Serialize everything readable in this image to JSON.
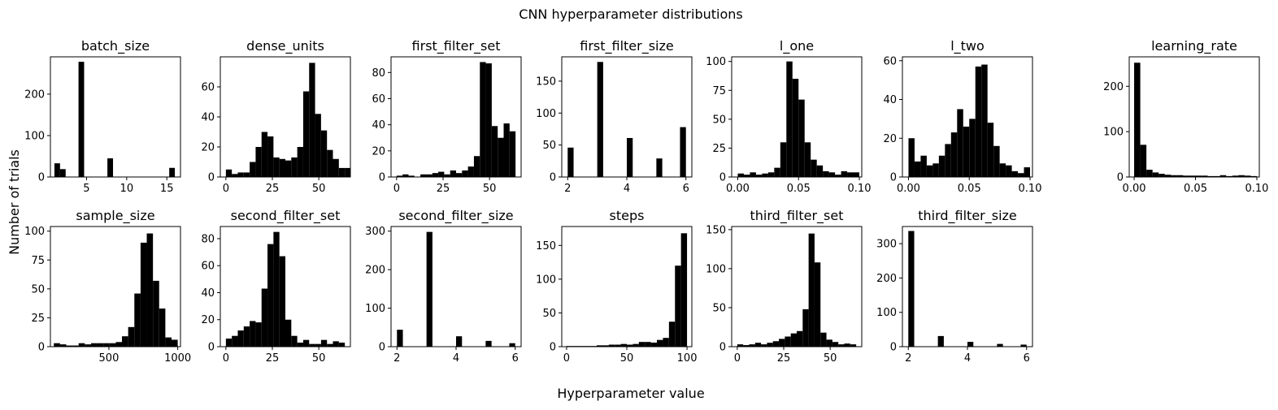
{
  "figure": {
    "suptitle": "CNN hyperparameter distributions",
    "xlabel": "Hyperparameter value",
    "ylabel": "Number of trials"
  },
  "chart_data": [
    {
      "type": "bar",
      "title": "batch_size",
      "xlim": [
        0.5,
        16.7
      ],
      "ylim": [
        0,
        290
      ],
      "xticks": [
        5,
        10,
        15
      ],
      "xtick_labels": [
        "5",
        "10",
        "15"
      ],
      "yticks": [
        0,
        100,
        200
      ],
      "ytick_labels": [
        "0",
        "100",
        "200"
      ],
      "bins": [
        [
          1,
          1.7,
          33
        ],
        [
          1.7,
          2.4,
          19
        ],
        [
          4,
          4.7,
          278
        ],
        [
          7.6,
          8.3,
          45
        ],
        [
          15.3,
          16,
          22
        ]
      ]
    },
    {
      "type": "bar",
      "title": "dense_units",
      "xlim": [
        -3,
        67
      ],
      "ylim": [
        0,
        80
      ],
      "xticks": [
        0,
        25,
        50
      ],
      "xtick_labels": [
        "0",
        "25",
        "50"
      ],
      "yticks": [
        0,
        20,
        40,
        60
      ],
      "ytick_labels": [
        "0",
        "20",
        "40",
        "60"
      ],
      "bins": [
        [
          0,
          3.2,
          5
        ],
        [
          3.2,
          6.4,
          2
        ],
        [
          6.4,
          9.6,
          3
        ],
        [
          9.6,
          12.8,
          3
        ],
        [
          12.8,
          16,
          10
        ],
        [
          16,
          19.2,
          20
        ],
        [
          19.2,
          22.4,
          30
        ],
        [
          22.4,
          25.6,
          27
        ],
        [
          25.6,
          28.8,
          13
        ],
        [
          28.8,
          32,
          12
        ],
        [
          32,
          35.2,
          11
        ],
        [
          35.2,
          38.4,
          13
        ],
        [
          38.4,
          41.6,
          20
        ],
        [
          41.6,
          44.8,
          57
        ],
        [
          44.8,
          48,
          76
        ],
        [
          48,
          51.2,
          42
        ],
        [
          51.2,
          54.4,
          31
        ],
        [
          54.4,
          57.6,
          18
        ],
        [
          57.6,
          60.8,
          12
        ],
        [
          60.8,
          64,
          6
        ],
        [
          64,
          67.2,
          6
        ]
      ]
    },
    {
      "type": "bar",
      "title": "first_filter_set",
      "xlim": [
        -3,
        67
      ],
      "ylim": [
        0,
        92
      ],
      "xticks": [
        0,
        25,
        50
      ],
      "xtick_labels": [
        "0",
        "25",
        "50"
      ],
      "yticks": [
        0,
        20,
        40,
        60,
        80
      ],
      "ytick_labels": [
        "0",
        "20",
        "40",
        "60",
        "80"
      ],
      "bins": [
        [
          0,
          3.2,
          1
        ],
        [
          3.2,
          6.4,
          2
        ],
        [
          6.4,
          9.6,
          1
        ],
        [
          9.6,
          12.8,
          0
        ],
        [
          12.8,
          16,
          2
        ],
        [
          16,
          19.2,
          2
        ],
        [
          19.2,
          22.4,
          3
        ],
        [
          22.4,
          25.6,
          4
        ],
        [
          25.6,
          28.8,
          2
        ],
        [
          28.8,
          32,
          5
        ],
        [
          32,
          35.2,
          3
        ],
        [
          35.2,
          38.4,
          5
        ],
        [
          38.4,
          41.6,
          8
        ],
        [
          41.6,
          44.8,
          16
        ],
        [
          44.8,
          48,
          88
        ],
        [
          48,
          51.2,
          87
        ],
        [
          51.2,
          54.4,
          39
        ],
        [
          54.4,
          57.6,
          30
        ],
        [
          57.6,
          60.8,
          41
        ],
        [
          60.8,
          64,
          35
        ]
      ]
    },
    {
      "type": "bar",
      "title": "first_filter_size",
      "xlim": [
        1.8,
        6.2
      ],
      "ylim": [
        0,
        188
      ],
      "xticks": [
        2,
        4,
        6
      ],
      "xtick_labels": [
        "2",
        "4",
        "6"
      ],
      "yticks": [
        0,
        50,
        100,
        150
      ],
      "ytick_labels": [
        "0",
        "50",
        "100",
        "150"
      ],
      "bins": [
        [
          2,
          2.2,
          46
        ],
        [
          3,
          3.2,
          180
        ],
        [
          4,
          4.2,
          61
        ],
        [
          5,
          5.2,
          29
        ],
        [
          5.8,
          6,
          78
        ]
      ]
    },
    {
      "type": "bar",
      "title": "l_one",
      "xlim": [
        -0.005,
        0.102
      ],
      "ylim": [
        0,
        104
      ],
      "xticks": [
        0,
        0.05,
        0.1
      ],
      "xtick_labels": [
        "0.00",
        "0.05",
        "0.10"
      ],
      "yticks": [
        0,
        25,
        50,
        75,
        100
      ],
      "ytick_labels": [
        "0",
        "25",
        "50",
        "75",
        "100"
      ],
      "bins": [
        [
          0,
          0.005,
          3
        ],
        [
          0.005,
          0.01,
          2
        ],
        [
          0.01,
          0.015,
          4
        ],
        [
          0.015,
          0.02,
          2
        ],
        [
          0.02,
          0.025,
          3
        ],
        [
          0.025,
          0.03,
          4
        ],
        [
          0.03,
          0.035,
          8
        ],
        [
          0.035,
          0.04,
          30
        ],
        [
          0.04,
          0.045,
          100
        ],
        [
          0.045,
          0.05,
          85
        ],
        [
          0.05,
          0.055,
          67
        ],
        [
          0.055,
          0.06,
          30
        ],
        [
          0.06,
          0.065,
          15
        ],
        [
          0.065,
          0.07,
          10
        ],
        [
          0.07,
          0.075,
          5
        ],
        [
          0.075,
          0.08,
          4
        ],
        [
          0.08,
          0.085,
          2
        ],
        [
          0.085,
          0.09,
          5
        ],
        [
          0.09,
          0.095,
          4
        ],
        [
          0.095,
          0.1,
          4
        ]
      ]
    },
    {
      "type": "bar",
      "title": "l_two",
      "xlim": [
        -0.005,
        0.102
      ],
      "ylim": [
        0,
        62
      ],
      "xticks": [
        0,
        0.05,
        0.1
      ],
      "xtick_labels": [
        "0.00",
        "0.05",
        "0.10"
      ],
      "yticks": [
        0,
        20,
        40,
        60
      ],
      "ytick_labels": [
        "0",
        "20",
        "40",
        "60"
      ],
      "bins": [
        [
          0,
          0.005,
          20
        ],
        [
          0.005,
          0.01,
          8
        ],
        [
          0.01,
          0.015,
          11
        ],
        [
          0.015,
          0.02,
          6
        ],
        [
          0.02,
          0.025,
          7
        ],
        [
          0.025,
          0.03,
          11
        ],
        [
          0.03,
          0.035,
          17
        ],
        [
          0.035,
          0.04,
          23
        ],
        [
          0.04,
          0.045,
          35
        ],
        [
          0.045,
          0.05,
          26
        ],
        [
          0.05,
          0.055,
          30
        ],
        [
          0.055,
          0.06,
          57
        ],
        [
          0.06,
          0.065,
          58
        ],
        [
          0.065,
          0.07,
          28
        ],
        [
          0.07,
          0.075,
          16
        ],
        [
          0.075,
          0.08,
          7
        ],
        [
          0.08,
          0.085,
          6
        ],
        [
          0.085,
          0.09,
          3
        ],
        [
          0.09,
          0.095,
          2
        ],
        [
          0.095,
          0.1,
          5
        ]
      ]
    },
    {
      "type": "bar",
      "title": "learning_rate",
      "xlim": [
        -0.004,
        0.102
      ],
      "ylim": [
        0,
        265
      ],
      "xticks": [
        0,
        0.05,
        0.1
      ],
      "xtick_labels": [
        "0.00",
        "0.05",
        "0.10"
      ],
      "yticks": [
        0,
        100,
        200
      ],
      "ytick_labels": [
        "0",
        "100",
        "200"
      ],
      "bins": [
        [
          0,
          0.005,
          252
        ],
        [
          0.005,
          0.01,
          71
        ],
        [
          0.01,
          0.015,
          16
        ],
        [
          0.015,
          0.02,
          10
        ],
        [
          0.02,
          0.025,
          7
        ],
        [
          0.025,
          0.03,
          5
        ],
        [
          0.03,
          0.035,
          4
        ],
        [
          0.035,
          0.04,
          4
        ],
        [
          0.04,
          0.045,
          3
        ],
        [
          0.045,
          0.05,
          3
        ],
        [
          0.05,
          0.055,
          3
        ],
        [
          0.055,
          0.06,
          3
        ],
        [
          0.06,
          0.065,
          2
        ],
        [
          0.065,
          0.07,
          2
        ],
        [
          0.07,
          0.075,
          4
        ],
        [
          0.075,
          0.08,
          2
        ],
        [
          0.08,
          0.085,
          3
        ],
        [
          0.085,
          0.09,
          4
        ],
        [
          0.09,
          0.095,
          3
        ],
        [
          0.095,
          0.1,
          2
        ]
      ]
    },
    {
      "type": "bar",
      "title": "sample_size",
      "xlim": [
        75,
        1020
      ],
      "ylim": [
        0,
        104
      ],
      "xticks": [
        500,
        1000
      ],
      "xtick_labels": [
        "500",
        "1000"
      ],
      "yticks": [
        0,
        25,
        50,
        75,
        100
      ],
      "ytick_labels": [
        "0",
        "25",
        "50",
        "75",
        "100"
      ],
      "bins": [
        [
          100,
          145,
          3
        ],
        [
          145,
          190,
          2
        ],
        [
          190,
          235,
          1
        ],
        [
          235,
          280,
          1
        ],
        [
          280,
          325,
          3
        ],
        [
          325,
          370,
          2
        ],
        [
          370,
          415,
          3
        ],
        [
          415,
          460,
          3
        ],
        [
          460,
          505,
          3
        ],
        [
          505,
          550,
          3
        ],
        [
          550,
          595,
          4
        ],
        [
          595,
          640,
          9
        ],
        [
          640,
          685,
          17
        ],
        [
          685,
          730,
          46
        ],
        [
          730,
          775,
          90
        ],
        [
          775,
          820,
          98
        ],
        [
          820,
          865,
          57
        ],
        [
          865,
          910,
          33
        ],
        [
          910,
          955,
          8
        ],
        [
          955,
          1000,
          6
        ]
      ]
    },
    {
      "type": "bar",
      "title": "second_filter_set",
      "xlim": [
        -3,
        67
      ],
      "ylim": [
        0,
        89
      ],
      "xticks": [
        0,
        25,
        50
      ],
      "xtick_labels": [
        "0",
        "25",
        "50"
      ],
      "yticks": [
        0,
        20,
        40,
        60,
        80
      ],
      "ytick_labels": [
        "0",
        "20",
        "40",
        "60",
        "80"
      ],
      "bins": [
        [
          0,
          3.2,
          6
        ],
        [
          3.2,
          6.4,
          8
        ],
        [
          6.4,
          9.6,
          12
        ],
        [
          9.6,
          12.8,
          15
        ],
        [
          12.8,
          16,
          19
        ],
        [
          16,
          19.2,
          18
        ],
        [
          19.2,
          22.4,
          43
        ],
        [
          22.4,
          25.6,
          76
        ],
        [
          25.6,
          28.8,
          85
        ],
        [
          28.8,
          32,
          67
        ],
        [
          32,
          35.2,
          20
        ],
        [
          35.2,
          38.4,
          8
        ],
        [
          38.4,
          41.6,
          3
        ],
        [
          41.6,
          44.8,
          5
        ],
        [
          44.8,
          48,
          2
        ],
        [
          48,
          51.2,
          2
        ],
        [
          51.2,
          54.4,
          5
        ],
        [
          54.4,
          57.6,
          2
        ],
        [
          57.6,
          60.8,
          4
        ],
        [
          60.8,
          64,
          3
        ]
      ]
    },
    {
      "type": "bar",
      "title": "second_filter_size",
      "xlim": [
        1.8,
        6.2
      ],
      "ylim": [
        0,
        312
      ],
      "xticks": [
        2,
        4,
        6
      ],
      "xtick_labels": [
        "2",
        "4",
        "6"
      ],
      "yticks": [
        0,
        100,
        200,
        300
      ],
      "ytick_labels": [
        "0",
        "100",
        "200",
        "300"
      ],
      "bins": [
        [
          2,
          2.2,
          44
        ],
        [
          3,
          3.2,
          298
        ],
        [
          4,
          4.2,
          27
        ],
        [
          5,
          5.2,
          15
        ],
        [
          5.8,
          6,
          9
        ]
      ]
    },
    {
      "type": "bar",
      "title": "steps",
      "xlim": [
        -4,
        104
      ],
      "ylim": [
        0,
        178
      ],
      "xticks": [
        0,
        50,
        100
      ],
      "xtick_labels": [
        "0",
        "50",
        "100"
      ],
      "yticks": [
        0,
        50,
        100,
        150
      ],
      "ytick_labels": [
        "0",
        "50",
        "100",
        "150"
      ],
      "bins": [
        [
          0,
          5,
          1
        ],
        [
          5,
          10,
          1
        ],
        [
          10,
          15,
          1
        ],
        [
          15,
          20,
          1
        ],
        [
          20,
          25,
          1
        ],
        [
          25,
          30,
          2
        ],
        [
          30,
          35,
          2
        ],
        [
          35,
          40,
          3
        ],
        [
          40,
          45,
          3
        ],
        [
          45,
          50,
          4
        ],
        [
          50,
          55,
          3
        ],
        [
          55,
          60,
          4
        ],
        [
          60,
          65,
          7
        ],
        [
          65,
          70,
          7
        ],
        [
          70,
          75,
          6
        ],
        [
          75,
          80,
          10
        ],
        [
          80,
          85,
          13
        ],
        [
          85,
          90,
          37
        ],
        [
          90,
          95,
          120
        ],
        [
          95,
          100,
          168
        ]
      ]
    },
    {
      "type": "bar",
      "title": "third_filter_set",
      "xlim": [
        -3,
        67
      ],
      "ylim": [
        0,
        154
      ],
      "xticks": [
        0,
        25,
        50
      ],
      "xtick_labels": [
        "0",
        "25",
        "50"
      ],
      "yticks": [
        0,
        50,
        100,
        150
      ],
      "ytick_labels": [
        "0",
        "50",
        "100",
        "150"
      ],
      "bins": [
        [
          0,
          3.2,
          3
        ],
        [
          3.2,
          6.4,
          2
        ],
        [
          6.4,
          9.6,
          3
        ],
        [
          9.6,
          12.8,
          5
        ],
        [
          12.8,
          16,
          3
        ],
        [
          16,
          19.2,
          5
        ],
        [
          19.2,
          22.4,
          7
        ],
        [
          22.4,
          25.6,
          10
        ],
        [
          25.6,
          28.8,
          13
        ],
        [
          28.8,
          32,
          17
        ],
        [
          32,
          35.2,
          20
        ],
        [
          35.2,
          38.4,
          48
        ],
        [
          38.4,
          41.6,
          145
        ],
        [
          41.6,
          44.8,
          108
        ],
        [
          44.8,
          48,
          18
        ],
        [
          48,
          51.2,
          9
        ],
        [
          51.2,
          54.4,
          6
        ],
        [
          54.4,
          57.6,
          3
        ],
        [
          57.6,
          60.8,
          4
        ],
        [
          60.8,
          64,
          3
        ]
      ]
    },
    {
      "type": "bar",
      "title": "third_filter_size",
      "xlim": [
        1.8,
        6.2
      ],
      "ylim": [
        0,
        350
      ],
      "xticks": [
        2,
        4,
        6
      ],
      "xtick_labels": [
        "2",
        "4",
        "6"
      ],
      "yticks": [
        0,
        100,
        200,
        300
      ],
      "ytick_labels": [
        "0",
        "100",
        "200",
        "300"
      ],
      "bins": [
        [
          2,
          2.2,
          337
        ],
        [
          3,
          3.2,
          31
        ],
        [
          4,
          4.2,
          14
        ],
        [
          5,
          5.2,
          8
        ],
        [
          5.8,
          6,
          6
        ]
      ]
    }
  ]
}
